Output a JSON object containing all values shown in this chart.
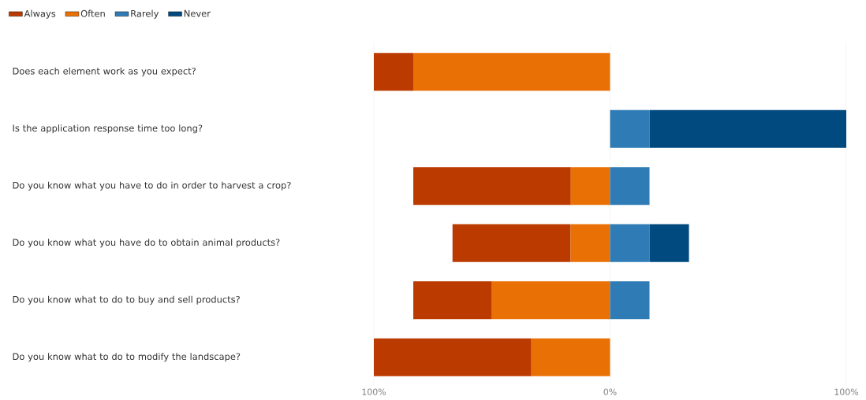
{
  "chart_data": {
    "type": "bar",
    "orientation": "horizontal",
    "categories": [
      "Does each element work as you expect?",
      "Is the application response time too long?",
      "Do you know what you have to do in order to harvest a crop?",
      "Do you know what you have do to obtain animal products?",
      "Do you know what to do to buy and sell products?",
      "Do you know what to do to modify the landscape?"
    ],
    "series": [
      {
        "name": "Always",
        "color": "#bb3a00",
        "values": [
          16.7,
          null,
          66.7,
          50,
          33.3,
          66.7
        ],
        "base": [
          -100,
          null,
          -83.3,
          -66.7,
          -83.3,
          -100
        ]
      },
      {
        "name": "Often",
        "color": "#e97005",
        "values": [
          83.3,
          null,
          16.7,
          16.7,
          50,
          33.3
        ],
        "base": [
          -83.3,
          null,
          -16.7,
          -16.7,
          -50,
          -33.3
        ]
      },
      {
        "name": "Rarely",
        "color": "#2e7bb5",
        "values": [
          null,
          16.7,
          16.7,
          16.7,
          16.7,
          null
        ],
        "base": [
          null,
          0,
          0,
          0,
          0,
          null
        ]
      },
      {
        "name": "Never",
        "color": "#004a80",
        "values": [
          null,
          83.3,
          null,
          16.7,
          null,
          null
        ],
        "base": [
          null,
          16.7,
          null,
          16.7,
          null,
          null
        ]
      }
    ],
    "xlim": [
      -100,
      100
    ],
    "xticks": [
      {
        "value": -100,
        "label": "100%"
      },
      {
        "value": 0,
        "label": "0%"
      },
      {
        "value": 100,
        "label": "100%"
      }
    ],
    "grid": "x",
    "legend": "top left"
  }
}
